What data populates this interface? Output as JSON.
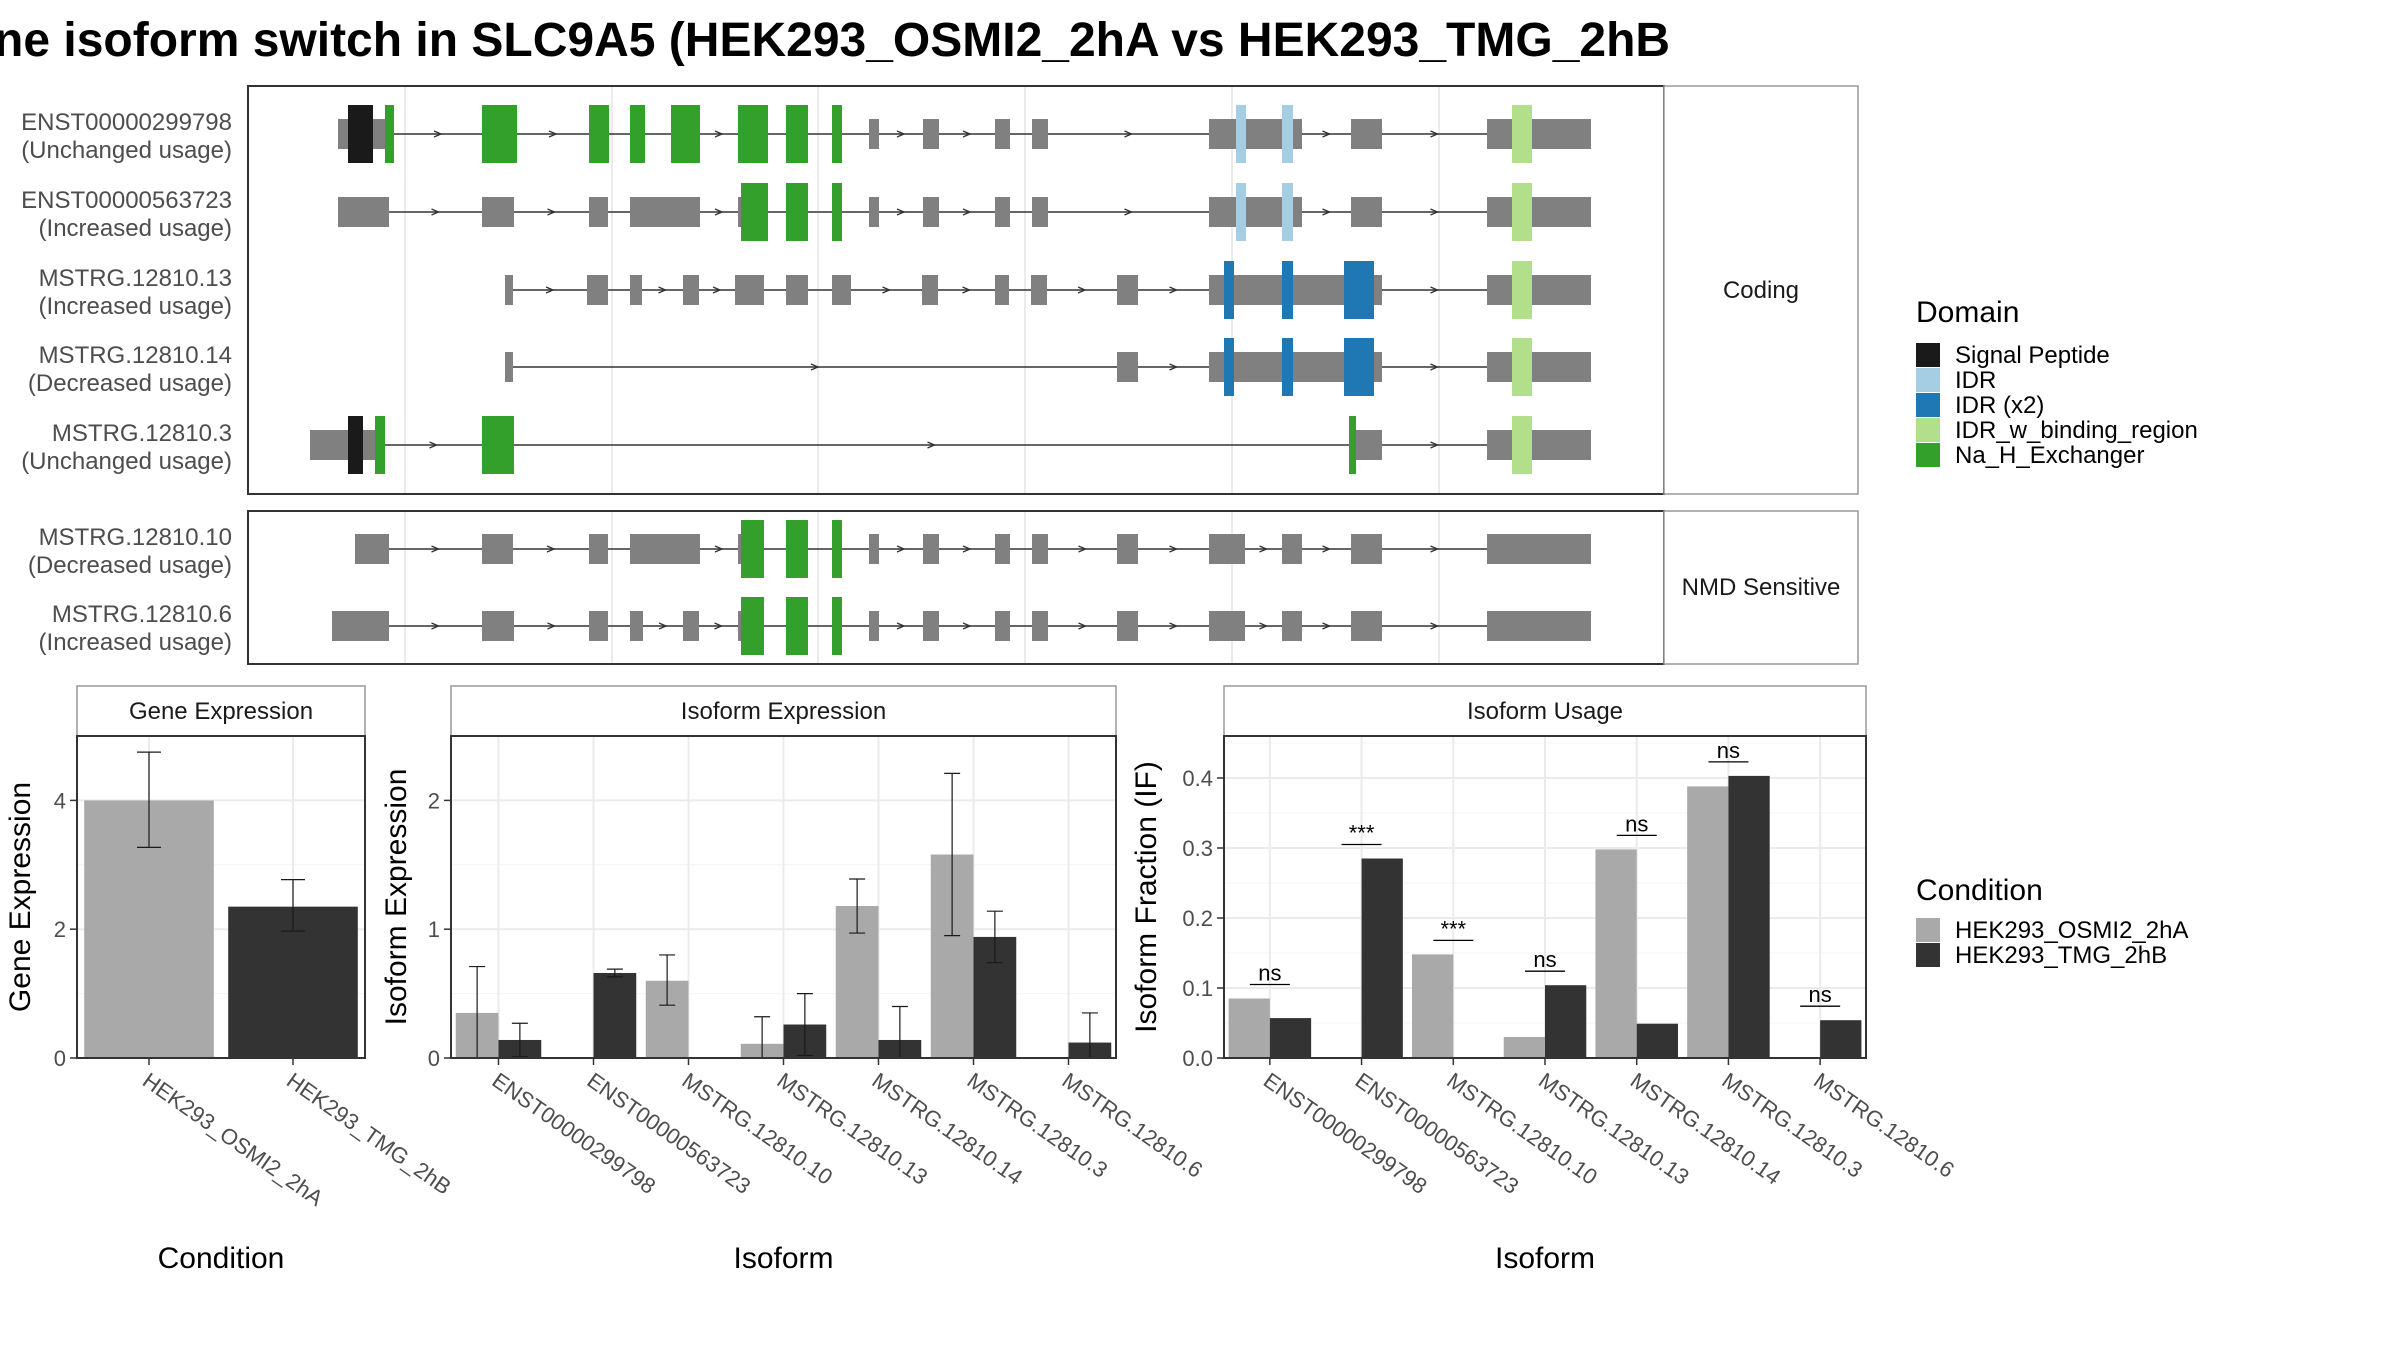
{
  "title": "ne isoform switch in SLC9A5 (HEK293_OSMI2_2hA vs HEK293_TMG_2hB",
  "colors": {
    "intron": "#333333",
    "noncoding": "#808080",
    "cond_a": "#a9a9a9",
    "cond_b": "#333333",
    "grid": "#ebebeb",
    "strip_border": "#999999",
    "panel_border": "#333333"
  },
  "domain_legend": {
    "title": "Domain",
    "items": [
      {
        "label": "Signal Peptide",
        "color": "#1a1a1a"
      },
      {
        "label": "IDR",
        "color": "#a6cee3"
      },
      {
        "label": "IDR (x2)",
        "color": "#1f78b4"
      },
      {
        "label": "IDR_w_binding_region",
        "color": "#b2df8a"
      },
      {
        "label": "Na_H_Exchanger",
        "color": "#33a02c"
      }
    ]
  },
  "condition_legend": {
    "title": "Condition",
    "items": [
      {
        "label": "HEK293_OSMI2_2hA",
        "color": "#a9a9a9"
      },
      {
        "label": "HEK293_TMG_2hB",
        "color": "#333333"
      }
    ]
  },
  "transcript_panels": [
    {
      "strip": "Coding",
      "transcripts": [
        {
          "id": "ENST00000299798",
          "usage": "(Unchanged usage)",
          "span": [
            338,
            1591
          ],
          "exons": [
            [
              338,
              348,
              "N"
            ],
            [
              348,
              373,
              "SP"
            ],
            [
              373,
              385,
              "N"
            ],
            [
              385,
              394,
              "NA"
            ],
            [
              482,
              517,
              "NA"
            ],
            [
              589,
              609,
              "NA"
            ],
            [
              630,
              645,
              "NA"
            ],
            [
              671,
              700,
              "NA"
            ],
            [
              738,
              768,
              "NA"
            ],
            [
              786,
              808,
              "NA"
            ],
            [
              832,
              842,
              "NA"
            ],
            [
              869,
              879,
              "N"
            ],
            [
              923,
              939,
              "N"
            ],
            [
              995,
              1010,
              "N"
            ],
            [
              1032,
              1048,
              "N"
            ],
            [
              1209,
              1236,
              "N"
            ],
            [
              1236,
              1246,
              "IDR"
            ],
            [
              1246,
              1282,
              "N"
            ],
            [
              1282,
              1293,
              "IDR"
            ],
            [
              1293,
              1302,
              "N"
            ],
            [
              1351,
              1382,
              "N"
            ],
            [
              1487,
              1512,
              "N"
            ],
            [
              1512,
              1532,
              "IDRB"
            ],
            [
              1532,
              1591,
              "N"
            ]
          ]
        },
        {
          "id": "ENST00000563723",
          "usage": "(Increased usage)",
          "span": [
            338,
            1591
          ],
          "exons": [
            [
              338,
              389,
              "N"
            ],
            [
              482,
              514,
              "N"
            ],
            [
              589,
              608,
              "N"
            ],
            [
              630,
              643,
              "N"
            ],
            [
              631,
              700,
              "N"
            ],
            [
              738,
              741,
              "N"
            ],
            [
              741,
              768,
              "NA"
            ],
            [
              786,
              808,
              "NA"
            ],
            [
              832,
              842,
              "NA"
            ],
            [
              869,
              879,
              "N"
            ],
            [
              923,
              939,
              "N"
            ],
            [
              995,
              1010,
              "N"
            ],
            [
              1032,
              1048,
              "N"
            ],
            [
              1209,
              1236,
              "N"
            ],
            [
              1236,
              1246,
              "IDR"
            ],
            [
              1246,
              1282,
              "N"
            ],
            [
              1282,
              1293,
              "IDR"
            ],
            [
              1293,
              1302,
              "N"
            ],
            [
              1351,
              1382,
              "N"
            ],
            [
              1487,
              1512,
              "N"
            ],
            [
              1512,
              1532,
              "IDRB"
            ],
            [
              1532,
              1591,
              "N"
            ]
          ]
        },
        {
          "id": "MSTRG.12810.13",
          "usage": "(Increased usage)",
          "span": [
            505,
            1591
          ],
          "exons": [
            [
              505,
              513,
              "N"
            ],
            [
              587,
              608,
              "N"
            ],
            [
              630,
              642,
              "N"
            ],
            [
              683,
              699,
              "N"
            ],
            [
              735,
              764,
              "N"
            ],
            [
              786,
              808,
              "N"
            ],
            [
              832,
              851,
              "N"
            ],
            [
              922,
              938,
              "N"
            ],
            [
              995,
              1009,
              "N"
            ],
            [
              1031,
              1047,
              "N"
            ],
            [
              1117,
              1138,
              "N"
            ],
            [
              1209,
              1224,
              "N"
            ],
            [
              1224,
              1234,
              "IDRX"
            ],
            [
              1234,
              1282,
              "N"
            ],
            [
              1282,
              1293,
              "IDRX"
            ],
            [
              1293,
              1344,
              "N"
            ],
            [
              1344,
              1374,
              "IDRX"
            ],
            [
              1374,
              1382,
              "N"
            ],
            [
              1487,
              1512,
              "N"
            ],
            [
              1512,
              1532,
              "IDRB"
            ],
            [
              1532,
              1591,
              "N"
            ]
          ]
        },
        {
          "id": "MSTRG.12810.14",
          "usage": "(Decreased usage)",
          "span": [
            505,
            1591
          ],
          "exons": [
            [
              505,
              513,
              "N"
            ],
            [
              1117,
              1138,
              "N"
            ],
            [
              1209,
              1224,
              "N"
            ],
            [
              1224,
              1234,
              "IDRX"
            ],
            [
              1234,
              1282,
              "N"
            ],
            [
              1282,
              1293,
              "IDRX"
            ],
            [
              1293,
              1344,
              "N"
            ],
            [
              1344,
              1374,
              "IDRX"
            ],
            [
              1374,
              1382,
              "N"
            ],
            [
              1487,
              1512,
              "N"
            ],
            [
              1512,
              1532,
              "IDRB"
            ],
            [
              1532,
              1591,
              "N"
            ]
          ]
        },
        {
          "id": "MSTRG.12810.3",
          "usage": "(Unchanged usage)",
          "span": [
            310,
            1591
          ],
          "exons": [
            [
              310,
              348,
              "N"
            ],
            [
              348,
              363,
              "SP"
            ],
            [
              363,
              375,
              "N"
            ],
            [
              375,
              385,
              "NA"
            ],
            [
              482,
              514,
              "NA"
            ],
            [
              1349,
              1356,
              "NA"
            ],
            [
              1356,
              1382,
              "N"
            ],
            [
              1487,
              1512,
              "N"
            ],
            [
              1512,
              1532,
              "IDRB"
            ],
            [
              1532,
              1591,
              "N"
            ]
          ]
        }
      ]
    },
    {
      "strip": "NMD Sensitive",
      "transcripts": [
        {
          "id": "MSTRG.12810.10",
          "usage": "(Decreased usage)",
          "span": [
            355,
            1591
          ],
          "exons": [
            [
              355,
              389,
              "N"
            ],
            [
              482,
              513,
              "N"
            ],
            [
              589,
              608,
              "N"
            ],
            [
              630,
              700,
              "N"
            ],
            [
              738,
              741,
              "N"
            ],
            [
              741,
              764,
              "NA"
            ],
            [
              786,
              808,
              "NA"
            ],
            [
              832,
              842,
              "NA"
            ],
            [
              869,
              879,
              "N"
            ],
            [
              923,
              939,
              "N"
            ],
            [
              995,
              1010,
              "N"
            ],
            [
              1032,
              1048,
              "N"
            ],
            [
              1117,
              1126,
              "N"
            ],
            [
              1126,
              1138,
              "N"
            ],
            [
              1209,
              1245,
              "N"
            ],
            [
              1282,
              1302,
              "N"
            ],
            [
              1351,
              1382,
              "N"
            ],
            [
              1487,
              1591,
              "N"
            ]
          ]
        },
        {
          "id": "MSTRG.12810.6",
          "usage": "(Increased usage)",
          "span": [
            332,
            1591
          ],
          "exons": [
            [
              332,
              389,
              "N"
            ],
            [
              482,
              514,
              "N"
            ],
            [
              589,
              608,
              "N"
            ],
            [
              630,
              643,
              "N"
            ],
            [
              683,
              699,
              "N"
            ],
            [
              738,
              741,
              "N"
            ],
            [
              741,
              764,
              "NA"
            ],
            [
              786,
              808,
              "NA"
            ],
            [
              832,
              842,
              "NA"
            ],
            [
              869,
              879,
              "N"
            ],
            [
              923,
              939,
              "N"
            ],
            [
              995,
              1010,
              "N"
            ],
            [
              1032,
              1048,
              "N"
            ],
            [
              1117,
              1126,
              "N"
            ],
            [
              1126,
              1138,
              "N"
            ],
            [
              1209,
              1245,
              "N"
            ],
            [
              1282,
              1302,
              "N"
            ],
            [
              1351,
              1382,
              "N"
            ],
            [
              1487,
              1591,
              "N"
            ]
          ]
        }
      ]
    }
  ],
  "domain_keys": {
    "SP": "#1a1a1a",
    "IDR": "#a6cee3",
    "IDRX": "#1f78b4",
    "IDRB": "#b2df8a",
    "NA": "#33a02c",
    "N": "#808080"
  },
  "chart_data": [
    {
      "type": "bar",
      "title": "Gene Expression",
      "xlabel": "Condition",
      "ylabel": "Gene Expression",
      "ylim": [
        0,
        5.0
      ],
      "yticks": [
        0,
        2,
        4
      ],
      "categories": [
        "HEK293_OSMI2_2hA",
        "HEK293_TMG_2hB"
      ],
      "values": [
        4.0,
        2.35
      ],
      "errors": [
        [
          3.27,
          4.75
        ],
        [
          1.97,
          2.77
        ]
      ]
    },
    {
      "type": "bar",
      "title": "Isoform Expression",
      "xlabel": "Isoform",
      "ylabel": "Isoform Expression",
      "ylim": [
        0,
        2.5
      ],
      "yticks": [
        0,
        1,
        2
      ],
      "categories": [
        "ENST00000299798",
        "ENST00000563723",
        "MSTRG.12810.10",
        "MSTRG.12810.13",
        "MSTRG.12810.14",
        "MSTRG.12810.3",
        "MSTRG.12810.6"
      ],
      "series": [
        {
          "name": "HEK293_OSMI2_2hA",
          "values": [
            0.35,
            0.0,
            0.6,
            0.11,
            1.18,
            1.58,
            0.0
          ],
          "errors": [
            [
              0.0,
              0.71
            ],
            null,
            [
              0.41,
              0.8
            ],
            [
              0.0,
              0.32
            ],
            [
              0.97,
              1.39
            ],
            [
              0.95,
              2.21
            ],
            null
          ]
        },
        {
          "name": "HEK293_TMG_2hB",
          "values": [
            0.14,
            0.66,
            0.0,
            0.26,
            0.14,
            0.94,
            0.12
          ],
          "errors": [
            [
              0.01,
              0.27
            ],
            [
              0.63,
              0.69
            ],
            null,
            [
              0.02,
              0.5
            ],
            [
              0.0,
              0.4
            ],
            [
              0.74,
              1.14
            ],
            [
              0.0,
              0.35
            ]
          ]
        }
      ]
    },
    {
      "type": "bar",
      "title": "Isoform Usage",
      "xlabel": "Isoform",
      "ylabel": "Isoform Fraction (IF)",
      "ylim": [
        0,
        0.46
      ],
      "yticks": [
        0.0,
        0.1,
        0.2,
        0.3,
        0.4
      ],
      "ytick_labels": [
        "0.0",
        "0.1",
        "0.2",
        "0.3",
        "0.4"
      ],
      "categories": [
        "ENST00000299798",
        "ENST00000563723",
        "MSTRG.12810.10",
        "MSTRG.12810.13",
        "MSTRG.12810.14",
        "MSTRG.12810.3",
        "MSTRG.12810.6"
      ],
      "series": [
        {
          "name": "HEK293_OSMI2_2hA",
          "values": [
            0.085,
            0.0,
            0.148,
            0.03,
            0.298,
            0.388,
            0.0
          ]
        },
        {
          "name": "HEK293_TMG_2hB",
          "values": [
            0.057,
            0.285,
            0.0,
            0.104,
            0.049,
            0.403,
            0.054
          ]
        }
      ],
      "significance": [
        "ns",
        "***",
        "***",
        "ns",
        "ns",
        "ns",
        "ns"
      ]
    }
  ]
}
